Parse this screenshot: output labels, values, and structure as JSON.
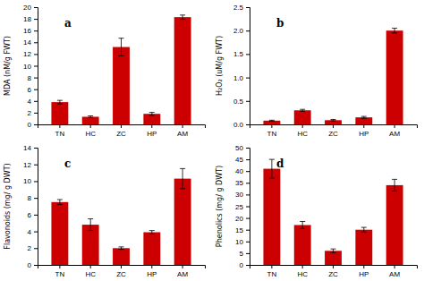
{
  "chart_data": [
    {
      "type": "bar",
      "annotations": [
        "a"
      ],
      "categories": [
        "TN",
        "HC",
        "ZC",
        "HP",
        "AM"
      ],
      "values": [
        3.8,
        1.3,
        13.2,
        1.8,
        18.3
      ],
      "errors": [
        0.3,
        0.15,
        1.5,
        0.25,
        0.35
      ],
      "color": "#cc0000",
      "ylabel": "MDA (nM/g FWT)",
      "ylim": [
        0,
        20
      ],
      "yticks": [
        0,
        2,
        4,
        6,
        8,
        10,
        12,
        14,
        16,
        18,
        20
      ],
      "grid": false
    },
    {
      "type": "bar",
      "annotations": [
        "b"
      ],
      "categories": [
        "TN",
        "HC",
        "ZC",
        "HP",
        "AM"
      ],
      "values": [
        0.08,
        0.3,
        0.09,
        0.15,
        2.0
      ],
      "errors": [
        0.01,
        0.02,
        0.015,
        0.02,
        0.05
      ],
      "color": "#cc0000",
      "ylabel": "H₂O₂ (uM/g FWT)",
      "ylim": [
        0,
        2.5
      ],
      "yticks": [
        {
          "value": 0.0,
          "label": "0.0"
        },
        0.5,
        {
          "value": 1.0,
          "label": "1.0"
        },
        1.5,
        {
          "value": 2.0,
          "label": "2.0"
        },
        2.5
      ],
      "grid": false
    },
    {
      "type": "bar",
      "annotations": [
        "c"
      ],
      "categories": [
        "TN",
        "HC",
        "ZC",
        "HP",
        "AM"
      ],
      "values": [
        7.5,
        4.8,
        2.0,
        3.9,
        10.3
      ],
      "errors": [
        0.3,
        0.7,
        0.15,
        0.2,
        1.2
      ],
      "color": "#cc0000",
      "ylabel": "Flavonoids (mg/ g DWT)",
      "ylim": [
        0,
        14
      ],
      "yticks": [
        0,
        2,
        4,
        6,
        8,
        10,
        12,
        14
      ],
      "grid": false
    },
    {
      "type": "bar",
      "annotations": [
        "d"
      ],
      "categories": [
        "TN",
        "HC",
        "ZC",
        "HP",
        "AM"
      ],
      "values": [
        41.0,
        17.0,
        6.0,
        15.0,
        34.0
      ],
      "errors": [
        4.0,
        1.5,
        0.8,
        1.0,
        2.5
      ],
      "color": "#cc0000",
      "ylabel": "Phenolics (mg/ g DWT)",
      "ylim": [
        0,
        50
      ],
      "yticks": [
        0,
        5,
        10,
        15,
        20,
        25,
        30,
        35,
        40,
        45,
        50
      ],
      "grid": false
    }
  ]
}
